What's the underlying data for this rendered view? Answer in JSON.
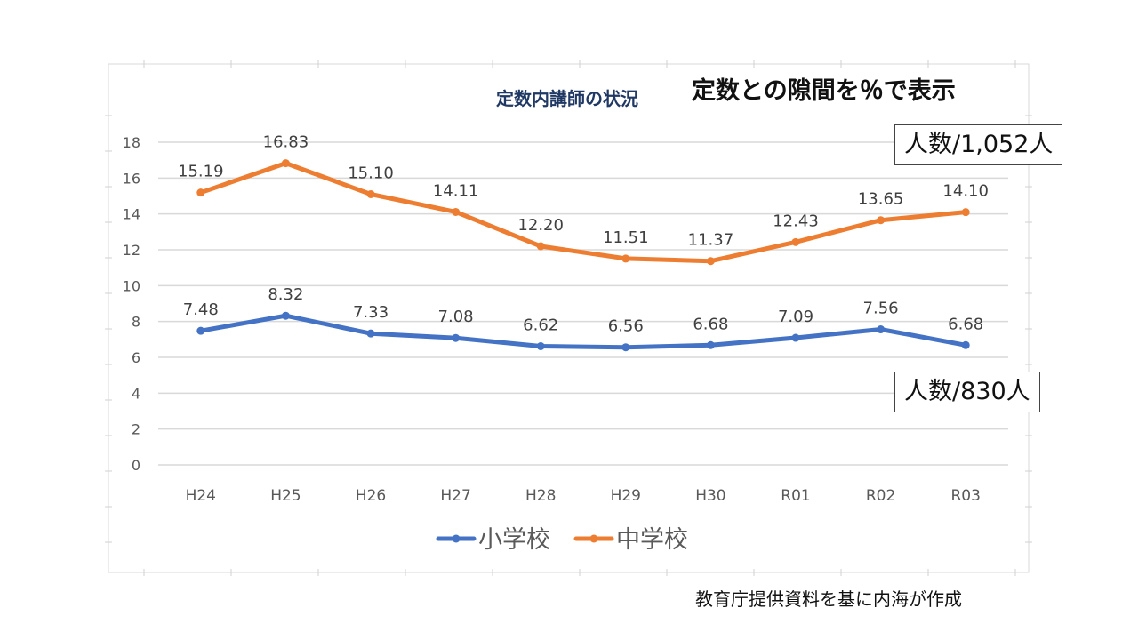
{
  "chart_data": {
    "type": "line",
    "title": "定数内講師の状況",
    "categories": [
      "H24",
      "H25",
      "H26",
      "H27",
      "H28",
      "H29",
      "H30",
      "R01",
      "R02",
      "R03"
    ],
    "ylim": [
      0,
      18
    ],
    "yticks": [
      "0",
      "2",
      "4",
      "6",
      "8",
      "10",
      "12",
      "14",
      "16",
      "18"
    ],
    "grid": true,
    "legend_position": "bottom",
    "series": [
      {
        "name": "小学校",
        "color": "#4472C4",
        "values": [
          7.48,
          8.32,
          7.33,
          7.08,
          6.62,
          6.56,
          6.68,
          7.09,
          7.56,
          6.68
        ],
        "labels": [
          "7.48",
          "8.32",
          "7.33",
          "7.08",
          "6.62",
          "6.56",
          "6.68",
          "7.09",
          "7.56",
          "6.68"
        ]
      },
      {
        "name": "中学校",
        "color": "#ED7D31",
        "values": [
          15.19,
          16.83,
          15.1,
          14.11,
          12.2,
          11.51,
          11.37,
          12.43,
          13.65,
          14.1
        ],
        "labels": [
          "15.19",
          "16.83",
          "15.10",
          "14.11",
          "12.20",
          "11.51",
          "11.37",
          "12.43",
          "13.65",
          "14.10"
        ]
      }
    ]
  },
  "annotations": {
    "subtitle": "定数との隙間を％で表示",
    "middle_school_count": "人数/1,052人",
    "elementary_count": "人数/830人",
    "source": "教育庁提供資料を基に内海が作成"
  }
}
